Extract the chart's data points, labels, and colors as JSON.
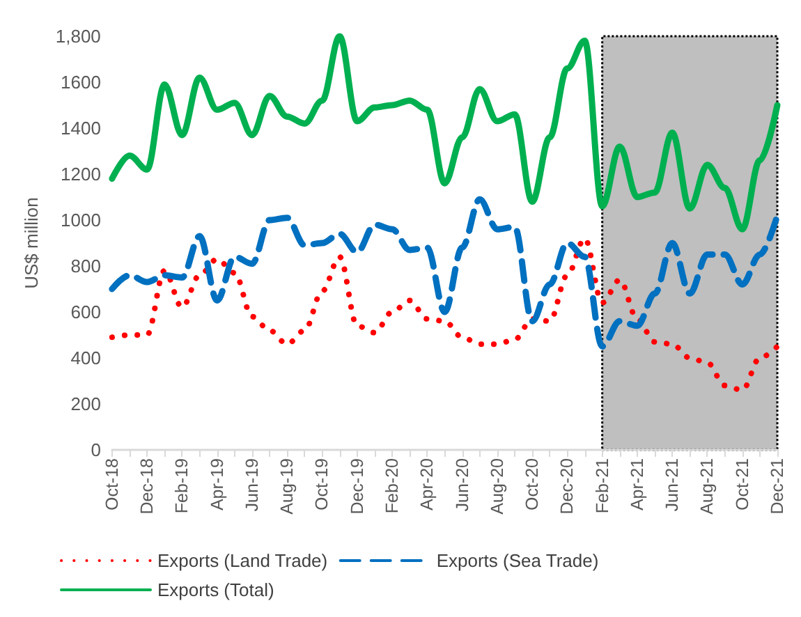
{
  "chart_data": {
    "type": "line",
    "ylabel": "US$ million",
    "categories": [
      "Oct-18",
      null,
      "Dec-18",
      null,
      "Feb-19",
      null,
      "Apr-19",
      null,
      "Jun-19",
      null,
      "Aug-19",
      null,
      "Oct-19",
      null,
      "Dec-19",
      null,
      "Feb-20",
      null,
      "Apr-20",
      null,
      "Jun-20",
      null,
      "Aug-20",
      null,
      "Oct-20",
      null,
      "Dec-20",
      null,
      "Feb-21",
      null,
      "Apr-21",
      null,
      "Jun-21",
      null,
      "Aug-21",
      null,
      "Oct-21",
      null,
      "Dec-21"
    ],
    "series": [
      {
        "name": "Exports (Land Trade)",
        "color": "#ff0000",
        "line_style": "dotted",
        "values": [
          490,
          500,
          500,
          780,
          620,
          760,
          830,
          770,
          580,
          520,
          460,
          520,
          690,
          840,
          540,
          510,
          600,
          650,
          570,
          560,
          490,
          460,
          460,
          480,
          570,
          560,
          760,
          920,
          640,
          740,
          570,
          470,
          460,
          400,
          380,
          280,
          260,
          400,
          450
        ]
      },
      {
        "name": "Exports (Sea Trade)",
        "color": "#0070c0",
        "line_style": "dashed",
        "values": [
          700,
          760,
          730,
          760,
          750,
          930,
          650,
          840,
          810,
          1000,
          1010,
          890,
          900,
          940,
          860,
          980,
          960,
          870,
          880,
          600,
          880,
          1090,
          960,
          970,
          560,
          720,
          900,
          840,
          450,
          560,
          540,
          680,
          900,
          680,
          850,
          850,
          720,
          850,
          1020
        ]
      },
      {
        "name": "Exports (Total)",
        "color": "#00b050",
        "line_style": "solid",
        "values": [
          1180,
          1280,
          1220,
          1590,
          1370,
          1620,
          1480,
          1510,
          1370,
          1540,
          1450,
          1420,
          1520,
          1800,
          1430,
          1490,
          1500,
          1520,
          1480,
          1160,
          1360,
          1570,
          1430,
          1460,
          1080,
          1360,
          1660,
          1780,
          1060,
          1320,
          1100,
          1120,
          1380,
          1050,
          1240,
          1140,
          960,
          1260,
          1500
        ]
      }
    ],
    "ylim": [
      0,
      1800
    ],
    "yticks": [
      0,
      200,
      400,
      600,
      800,
      1000,
      1200,
      1400,
      1600,
      {
        "value": 1800,
        "label": "1,800"
      }
    ],
    "bands": [
      {
        "axis": "x",
        "from": "Feb-21",
        "to": "Dec-21",
        "color": "#bfbfbf"
      }
    ],
    "grid": false,
    "legend": "bottom",
    "marker": "none"
  }
}
